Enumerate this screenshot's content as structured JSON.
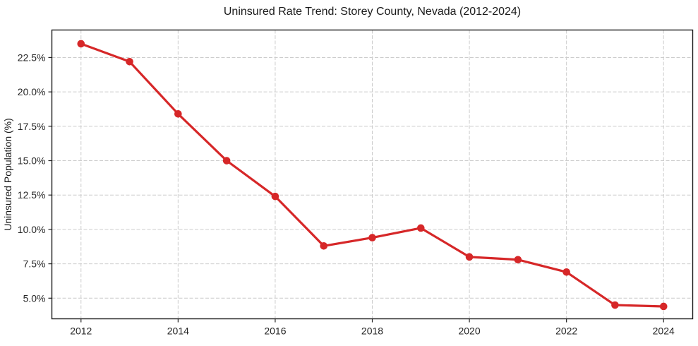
{
  "chart_data": {
    "type": "line",
    "title": "Uninsured Rate Trend: Storey County, Nevada (2012-2024)",
    "xlabel": "",
    "ylabel": "Uninsured Population (%)",
    "x": [
      2012,
      2013,
      2014,
      2015,
      2016,
      2017,
      2018,
      2019,
      2020,
      2021,
      2022,
      2023,
      2024
    ],
    "values": [
      23.5,
      22.2,
      18.4,
      15.0,
      12.4,
      8.8,
      9.4,
      10.1,
      8.0,
      7.8,
      6.9,
      4.5,
      4.4
    ],
    "xlim": [
      2011.4,
      2024.6
    ],
    "ylim": [
      3.5,
      24.5
    ],
    "xticks": [
      2012,
      2014,
      2016,
      2018,
      2020,
      2022,
      2024
    ],
    "xtick_labels": [
      "2012",
      "2014",
      "2016",
      "2018",
      "2020",
      "2022",
      "2024"
    ],
    "yticks": [
      5.0,
      7.5,
      10.0,
      12.5,
      15.0,
      17.5,
      20.0,
      22.5
    ],
    "ytick_labels": [
      "5.0%",
      "7.5%",
      "10.0%",
      "12.5%",
      "15.0%",
      "17.5%",
      "20.0%",
      "22.5%"
    ],
    "grid": true,
    "legend": false,
    "line_color": "#d62728",
    "marker_color": "#d62728",
    "grid_color": "#cccccc",
    "background": "#ffffff"
  }
}
